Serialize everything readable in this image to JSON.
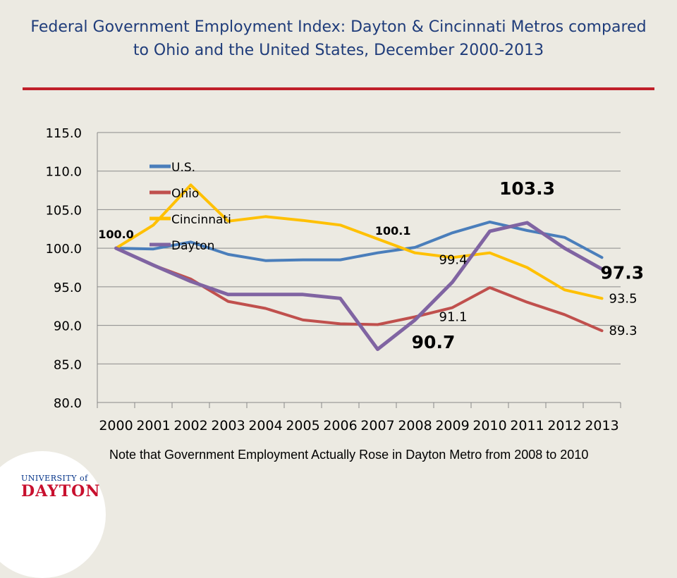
{
  "page": {
    "title": "Federal Government Employment Index: Dayton & Cincinnati Metros compared to Ohio and the United States, December 2000-2013",
    "note": "Note that Government Employment Actually Rose in Dayton Metro from 2008 to 2010",
    "logo": {
      "line1": "UNIVERSITY of",
      "line2": "DAYTON"
    },
    "colors": {
      "title": "#1F3C7A",
      "rule": "#C0202A",
      "background": "#ECEAE2"
    }
  },
  "chart_data": {
    "type": "line",
    "categories": [
      "2000",
      "2001",
      "2002",
      "2003",
      "2004",
      "2005",
      "2006",
      "2007",
      "2008",
      "2009",
      "2010",
      "2011",
      "2012",
      "2013"
    ],
    "ylim": [
      80,
      115
    ],
    "yticks": [
      "80.0",
      "85.0",
      "90.0",
      "95.0",
      "100.0",
      "105.0",
      "110.0",
      "115.0"
    ],
    "grid": true,
    "legend": "top-left, inside plot",
    "series": [
      {
        "name": "U.S.",
        "color": "#4A7EBB",
        "width": 4,
        "values": [
          100.0,
          99.9,
          100.8,
          99.2,
          98.4,
          98.5,
          98.5,
          99.4,
          100.1,
          102.0,
          103.4,
          102.3,
          101.4,
          98.8
        ]
      },
      {
        "name": "Ohio",
        "color": "#C0504D",
        "width": 4,
        "values": [
          100.0,
          97.8,
          96.0,
          93.1,
          92.2,
          90.7,
          90.2,
          90.1,
          91.1,
          92.3,
          94.9,
          93.0,
          91.4,
          89.3
        ]
      },
      {
        "name": "Cincinnati",
        "color": "#FFC000",
        "width": 4,
        "values": [
          100.0,
          103.0,
          108.2,
          103.5,
          104.1,
          103.6,
          103.0,
          101.2,
          99.4,
          98.8,
          99.4,
          97.5,
          94.6,
          93.5
        ]
      },
      {
        "name": "Dayton",
        "color": "#8064A2",
        "width": 5,
        "values": [
          100.0,
          97.8,
          95.7,
          94.0,
          94.0,
          94.0,
          93.5,
          86.9,
          90.7,
          95.6,
          102.2,
          103.3,
          100.0,
          97.3
        ]
      }
    ],
    "annotations": [
      {
        "text": "100.0",
        "x": 0,
        "y": 100.0,
        "bold": true,
        "size": "small",
        "pos": "above"
      },
      {
        "text": "100.1",
        "x": 8,
        "y": 100.1,
        "bold": true,
        "size": "small",
        "pos": "above-left"
      },
      {
        "text": "99.4",
        "x": 8,
        "y": 99.4,
        "bold": false,
        "size": "normal",
        "pos": "below-right"
      },
      {
        "text": "91.1",
        "x": 8,
        "y": 91.1,
        "bold": false,
        "size": "normal",
        "pos": "right"
      },
      {
        "text": "90.7",
        "x": 8,
        "y": 90.7,
        "bold": true,
        "size": "large",
        "pos": "below"
      },
      {
        "text": "103.3",
        "x": 11,
        "y": 103.3,
        "bold": true,
        "size": "large",
        "pos": "above"
      },
      {
        "text": "97.3",
        "x": 13,
        "y": 97.3,
        "bold": true,
        "size": "large",
        "pos": "right"
      },
      {
        "text": "93.5",
        "x": 13,
        "y": 93.5,
        "bold": false,
        "size": "normal",
        "pos": "right"
      },
      {
        "text": "89.3",
        "x": 13,
        "y": 89.3,
        "bold": false,
        "size": "normal",
        "pos": "right"
      }
    ]
  }
}
